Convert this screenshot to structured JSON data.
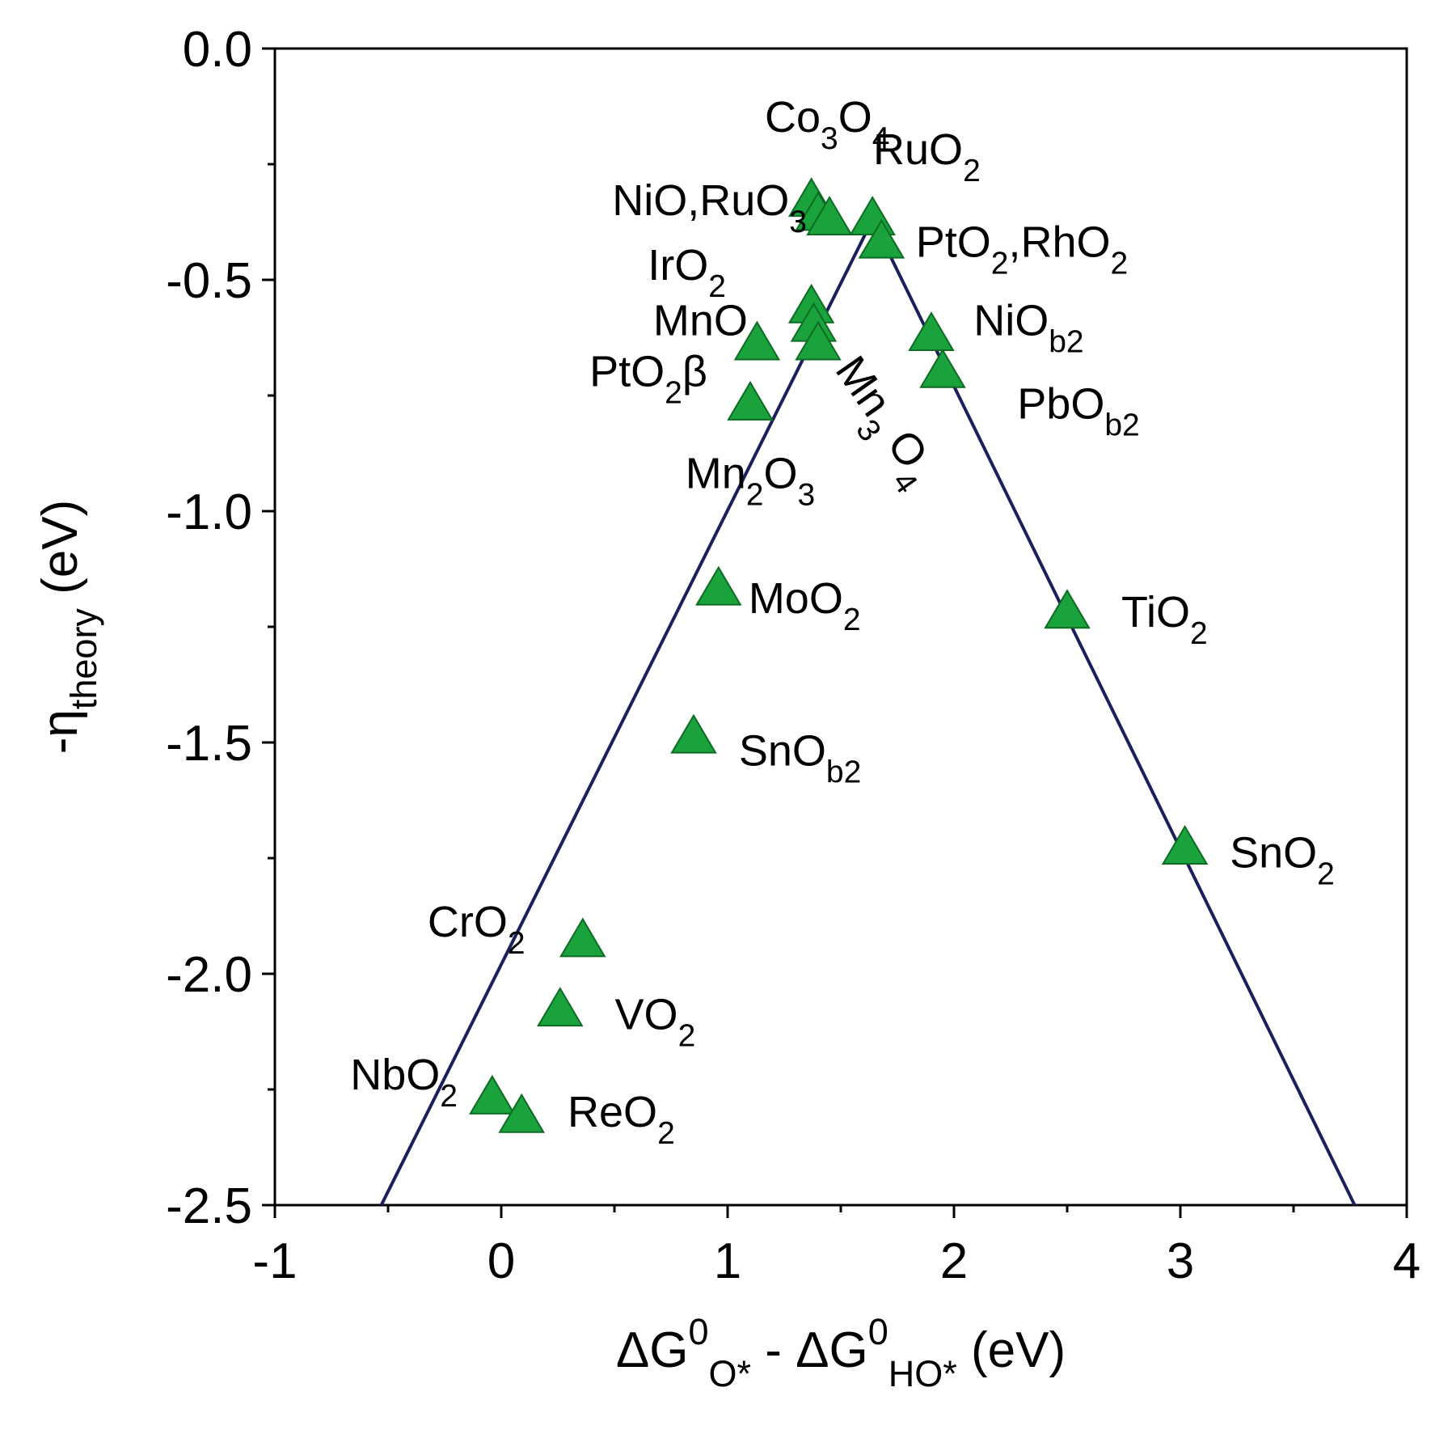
{
  "chart_data": {
    "type": "scatter",
    "title": "",
    "xlabel": {
      "parts": [
        {
          "t": "ΔG"
        },
        {
          "t": "0",
          "sup": true
        },
        {
          "t": "O*",
          "sub": true
        },
        {
          "t": " - ΔG"
        },
        {
          "t": "0",
          "sup": true
        },
        {
          "t": "HO*",
          "sub": true
        },
        {
          "t": " (eV)"
        }
      ]
    },
    "ylabel": {
      "parts": [
        {
          "t": "-η"
        },
        {
          "t": "theory",
          "sub": true
        },
        {
          "t": " (eV)"
        }
      ]
    },
    "xlim": [
      -1,
      4
    ],
    "ylim": [
      -2.5,
      0.0
    ],
    "xticks": [
      -1,
      0,
      1,
      2,
      3,
      4
    ],
    "xtick_labels": [
      "-1",
      "0",
      "1",
      "2",
      "3",
      "4"
    ],
    "yticks": [
      0.0,
      -0.5,
      -1.0,
      -1.5,
      -2.0,
      -2.5
    ],
    "ytick_labels": [
      "0.0",
      "-0.5",
      "-1.0",
      "-1.5",
      "-2.0",
      "-2.5"
    ],
    "volcano_line": {
      "x": [
        -0.53,
        1.64,
        3.77
      ],
      "y": [
        -2.5,
        -0.37,
        -2.5
      ]
    },
    "marker": "triangle",
    "marker_color": "#1aa33c",
    "line_color": "#1a1f5e",
    "points": [
      {
        "x": 1.37,
        "y": -0.33
      },
      {
        "x": 1.4,
        "y": -0.36
      },
      {
        "x": 1.45,
        "y": -0.37
      },
      {
        "x": 1.64,
        "y": -0.37
      },
      {
        "x": 1.68,
        "y": -0.42
      },
      {
        "x": 1.37,
        "y": -0.56
      },
      {
        "x": 1.38,
        "y": -0.6
      },
      {
        "x": 1.4,
        "y": -0.64
      },
      {
        "x": 1.13,
        "y": -0.64
      },
      {
        "x": 1.1,
        "y": -0.77
      },
      {
        "x": 1.9,
        "y": -0.62
      },
      {
        "x": 1.95,
        "y": -0.7
      },
      {
        "x": 0.96,
        "y": -1.17
      },
      {
        "x": 2.5,
        "y": -1.22
      },
      {
        "x": 0.85,
        "y": -1.49
      },
      {
        "x": 3.02,
        "y": -1.73
      },
      {
        "x": 0.36,
        "y": -1.93
      },
      {
        "x": 0.26,
        "y": -2.08
      },
      {
        "x": -0.04,
        "y": -2.27
      },
      {
        "x": 0.09,
        "y": -2.31
      }
    ],
    "labels": [
      {
        "parts": [
          {
            "t": "Co"
          },
          {
            "t": "3",
            "sub": true
          },
          {
            "t": "O"
          },
          {
            "t": "4",
            "sub": true
          }
        ],
        "at": [
          1.44,
          -0.18
        ]
      },
      {
        "parts": [
          {
            "t": "RuO"
          },
          {
            "t": "2",
            "sub": true
          }
        ],
        "at": [
          1.88,
          -0.25
        ]
      },
      {
        "parts": [
          {
            "t": "NiO,RuO"
          },
          {
            "t": "3",
            "sub": true
          }
        ],
        "at": [
          0.92,
          -0.36
        ]
      },
      {
        "parts": [
          {
            "t": "PtO"
          },
          {
            "t": "2",
            "sub": true
          },
          {
            "t": ",RhO"
          },
          {
            "t": "2",
            "sub": true
          }
        ],
        "at": [
          2.3,
          -0.45
        ]
      },
      {
        "parts": [
          {
            "t": "IrO"
          },
          {
            "t": "2",
            "sub": true
          }
        ],
        "at": [
          0.82,
          -0.5
        ]
      },
      {
        "parts": [
          {
            "t": "MnO"
          }
        ],
        "at": [
          0.88,
          -0.62
        ]
      },
      {
        "parts": [
          {
            "t": "NiO"
          },
          {
            "t": "b2",
            "sub": true
          }
        ],
        "at": [
          2.33,
          -0.62
        ]
      },
      {
        "parts": [
          {
            "t": "PtO"
          },
          {
            "t": "2",
            "sub": true
          },
          {
            "t": "β"
          }
        ],
        "at": [
          0.65,
          -0.73
        ]
      },
      {
        "parts": [
          {
            "t": "PbO"
          },
          {
            "t": "b2",
            "sub": true
          }
        ],
        "at": [
          2.55,
          -0.8
        ]
      },
      {
        "parts": [
          {
            "t": "Mn"
          },
          {
            "t": "2",
            "sub": true
          },
          {
            "t": "O"
          },
          {
            "t": "3",
            "sub": true
          }
        ],
        "at": [
          1.1,
          -0.95
        ]
      },
      {
        "parts": [
          {
            "t": "Mn"
          },
          {
            "t": "3",
            "sub": true
          },
          {
            "t": " O"
          },
          {
            "t": "4",
            "sub": true
          }
        ],
        "at": [
          1.65,
          -0.82
        ],
        "rotate": 55
      },
      {
        "parts": [
          {
            "t": "MoO"
          },
          {
            "t": "2",
            "sub": true
          }
        ],
        "at": [
          1.34,
          -1.22
        ]
      },
      {
        "parts": [
          {
            "t": "TiO"
          },
          {
            "t": "2",
            "sub": true
          }
        ],
        "at": [
          2.93,
          -1.25
        ]
      },
      {
        "parts": [
          {
            "t": "SnO"
          },
          {
            "t": "b2",
            "sub": true
          }
        ],
        "at": [
          1.32,
          -1.55
        ]
      },
      {
        "parts": [
          {
            "t": "SnO"
          },
          {
            "t": "2",
            "sub": true
          }
        ],
        "at": [
          3.45,
          -1.77
        ]
      },
      {
        "parts": [
          {
            "t": "CrO"
          },
          {
            "t": "2",
            "sub": true
          }
        ],
        "at": [
          -0.11,
          -1.92
        ]
      },
      {
        "parts": [
          {
            "t": "VO"
          },
          {
            "t": "2",
            "sub": true
          }
        ],
        "at": [
          0.68,
          -2.12
        ]
      },
      {
        "parts": [
          {
            "t": "NbO"
          },
          {
            "t": "2",
            "sub": true
          }
        ],
        "at": [
          -0.43,
          -2.25
        ]
      },
      {
        "parts": [
          {
            "t": "ReO"
          },
          {
            "t": "2",
            "sub": true
          }
        ],
        "at": [
          0.53,
          -2.33
        ]
      }
    ]
  }
}
